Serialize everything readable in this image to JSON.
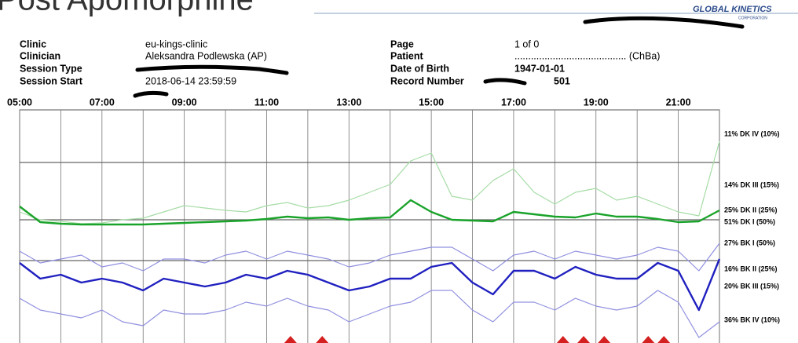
{
  "header": {
    "title": "Post Apomorphine",
    "logo": "GLOBAL KINETICS",
    "logo_sub": "CORPORATION"
  },
  "fields_left": [
    {
      "label": "Clinic",
      "value": "eu-kings-clinic"
    },
    {
      "label": "Clinician",
      "value": "Aleksandra Podlewska (AP)"
    },
    {
      "label": "Session Type"
    },
    {
      "label": "Session Start",
      "value": "2018-06-14 23:59:59"
    }
  ],
  "fields_right": [
    {
      "label": "Page",
      "value": "1 of 0"
    },
    {
      "label": "Patient",
      "value": "......................................... (ChBa)"
    },
    {
      "label": "Date of Birth",
      "value": "1947-01-01"
    },
    {
      "label": "Record Number",
      "value": "501"
    }
  ],
  "chart_data": {
    "type": "line",
    "x": [
      5,
      5.5,
      6,
      6.5,
      7,
      7.5,
      8,
      8.5,
      9,
      9.5,
      10,
      10.5,
      11,
      11.5,
      12,
      12.5,
      13,
      13.5,
      14,
      14.5,
      15,
      15.5,
      16,
      16.5,
      17,
      17.5,
      18,
      18.5,
      19,
      19.5,
      20,
      20.5,
      21,
      21.5,
      22
    ],
    "xlim": [
      5,
      22
    ],
    "xticks": [
      {
        "value": 5,
        "label": "05:00"
      },
      {
        "value": 7,
        "label": "07:00"
      },
      {
        "value": 9,
        "label": "09:00"
      },
      {
        "value": 11,
        "label": "11:00"
      },
      {
        "value": 13,
        "label": "13:00"
      },
      {
        "value": 15,
        "label": "15:00"
      },
      {
        "value": 17,
        "label": "17:00"
      },
      {
        "value": 19,
        "label": "19:00"
      },
      {
        "value": 21,
        "label": "21:00"
      }
    ],
    "minor_xticks": [
      6,
      8,
      10,
      12,
      14,
      16,
      18,
      20,
      22
    ],
    "ylim": [
      0,
      297
    ],
    "grid_lines": [
      230,
      157,
      105
    ],
    "band_labels": [
      "11% DK IV (10%)",
      "14% DK III (15%)",
      "25% DK II (25%)",
      "51% DK I (50%)",
      "27% BK I (50%)",
      "16% BK II (25%)",
      "20% BK III (15%)",
      "36% BK IV (10%)"
    ],
    "series": [
      {
        "color": "#a6dca6",
        "width": 1.2,
        "values": [
          167,
          157,
          155,
          152,
          153,
          157,
          159,
          167,
          175,
          172,
          169,
          167,
          175,
          179,
          172,
          175,
          182,
          192,
          202,
          232,
          242,
          187,
          182,
          207,
          222,
          192,
          177,
          192,
          197,
          182,
          187,
          177,
          167,
          162,
          257
        ]
      },
      {
        "color": "#1aa32a",
        "width": 2.4,
        "values": [
          174,
          154,
          152,
          151,
          151,
          151,
          151,
          152,
          153,
          154,
          155,
          156,
          158,
          161,
          159,
          160,
          157,
          159,
          160,
          182,
          167,
          157,
          156,
          155,
          167,
          164,
          161,
          160,
          165,
          161,
          161,
          158,
          154,
          155,
          169
        ]
      },
      {
        "color": "#9090e0",
        "width": 1.2,
        "values": [
          117,
          102,
          107,
          112,
          97,
          102,
          92,
          107,
          107,
          102,
          112,
          117,
          107,
          117,
          112,
          107,
          97,
          102,
          112,
          117,
          122,
          122,
          107,
          92,
          112,
          117,
          107,
          117,
          112,
          107,
          112,
          122,
          117,
          92,
          127
        ]
      },
      {
        "color": "#9090e0",
        "width": 1.2,
        "values": [
          57,
          42,
          37,
          32,
          42,
          27,
          22,
          42,
          37,
          37,
          42,
          52,
          47,
          57,
          47,
          42,
          27,
          37,
          47,
          52,
          67,
          67,
          42,
          27,
          52,
          52,
          42,
          57,
          47,
          42,
          47,
          67,
          52,
          7,
          27
        ]
      },
      {
        "color": "#2020c0",
        "width": 2.4,
        "values": [
          102,
          82,
          87,
          77,
          82,
          77,
          67,
          82,
          77,
          72,
          77,
          87,
          82,
          92,
          87,
          77,
          67,
          72,
          82,
          82,
          97,
          102,
          77,
          62,
          92,
          92,
          82,
          97,
          87,
          82,
          82,
          102,
          92,
          42,
          107
        ]
      }
    ],
    "events": {
      "color": "#d42020",
      "x": [
        11.58,
        12.35,
        18.2,
        18.7,
        19.2,
        20.27,
        20.65
      ]
    }
  }
}
